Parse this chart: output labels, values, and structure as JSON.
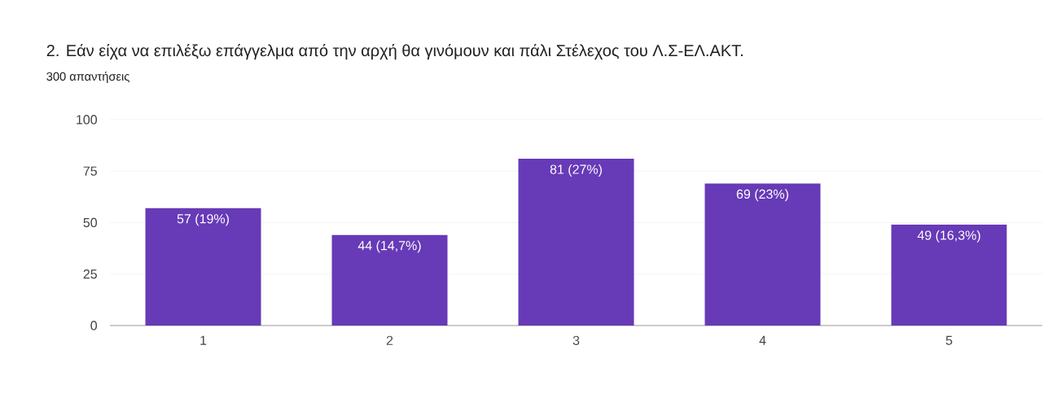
{
  "chart_data": {
    "type": "bar",
    "title": "2. Εάν είχα να επιλέξω επάγγελμα από την αρχή θα γινόμουν και πάλι Στέλεχος του Λ.Σ-ΕΛ.ΑΚΤ.",
    "subtitle": "300 απαντήσεις",
    "categories": [
      "1",
      "2",
      "3",
      "4",
      "5"
    ],
    "values": [
      57,
      44,
      81,
      69,
      49
    ],
    "value_labels": [
      "57 (19%)",
      "44 (14,7%)",
      "81 (27%)",
      "69 (23%)",
      "49 (16,3%)"
    ],
    "color": "#673ab7",
    "ylim": [
      0,
      100
    ],
    "yticks": [
      0,
      25,
      50,
      75,
      100
    ],
    "grid": "y"
  }
}
